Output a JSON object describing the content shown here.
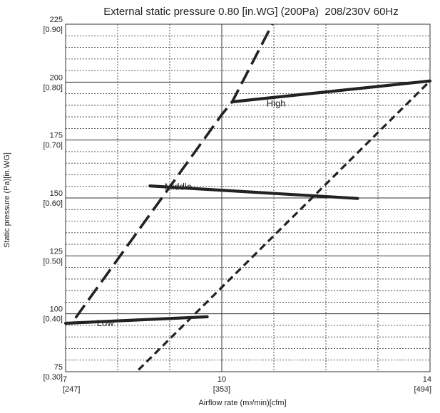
{
  "chart_data": {
    "type": "line",
    "title": "External static pressure 0.80 [in.WG] (200Pa)  208/230V 60Hz",
    "xlabel": "Airflow rate (m3/min)[cfm]",
    "ylabel": "Static pressure (Pa)[in.WG]",
    "xlim": [
      7,
      14
    ],
    "ylim": [
      75,
      225
    ],
    "x_ticks": [
      {
        "value": 7,
        "label": "7",
        "sub": "[247]"
      },
      {
        "value": 10,
        "label": "10",
        "sub": "[353]"
      },
      {
        "value": 14,
        "label": "14",
        "sub": "[494]"
      }
    ],
    "y_ticks": [
      {
        "value": 75,
        "label": "75",
        "sub": "[0.30]"
      },
      {
        "value": 100,
        "label": "100",
        "sub": "[0.40]"
      },
      {
        "value": 125,
        "label": "125",
        "sub": "[0.50]"
      },
      {
        "value": 150,
        "label": "150",
        "sub": "[0.60]"
      },
      {
        "value": 175,
        "label": "175",
        "sub": "[0.70]"
      },
      {
        "value": 200,
        "label": "200",
        "sub": "[0.80]"
      },
      {
        "value": 225,
        "label": "225",
        "sub": "[0.90]"
      }
    ],
    "grid": {
      "x_major": [
        10
      ],
      "x_minor": [
        8,
        9,
        11,
        12,
        13
      ],
      "y_major": [
        100,
        125,
        150,
        175,
        200
      ],
      "y_minor_step": 5
    },
    "series": [
      {
        "name": "High",
        "style": "solid",
        "x": [
          10.2,
          14.0
        ],
        "y": [
          191.5,
          200.5
        ],
        "label_at": [
          10.86,
          189.5
        ]
      },
      {
        "name": "Middle",
        "style": "solid",
        "x": [
          8.62,
          12.61
        ],
        "y": [
          155.2,
          149.8
        ],
        "label_at": [
          8.9,
          153.6
        ]
      },
      {
        "name": "Low",
        "style": "solid",
        "x": [
          7.0,
          9.72
        ],
        "y": [
          95.9,
          98.7
        ],
        "label_at": [
          7.6,
          94.7
        ]
      },
      {
        "style": "long-dash",
        "x": [
          7.19,
          10.0,
          10.2,
          10.97
        ],
        "y": [
          98.2,
          186.0,
          191.5,
          225.0
        ]
      },
      {
        "style": "short-dash",
        "x": [
          8.4,
          14.0
        ],
        "y": [
          75.8,
          200.5
        ]
      }
    ]
  }
}
